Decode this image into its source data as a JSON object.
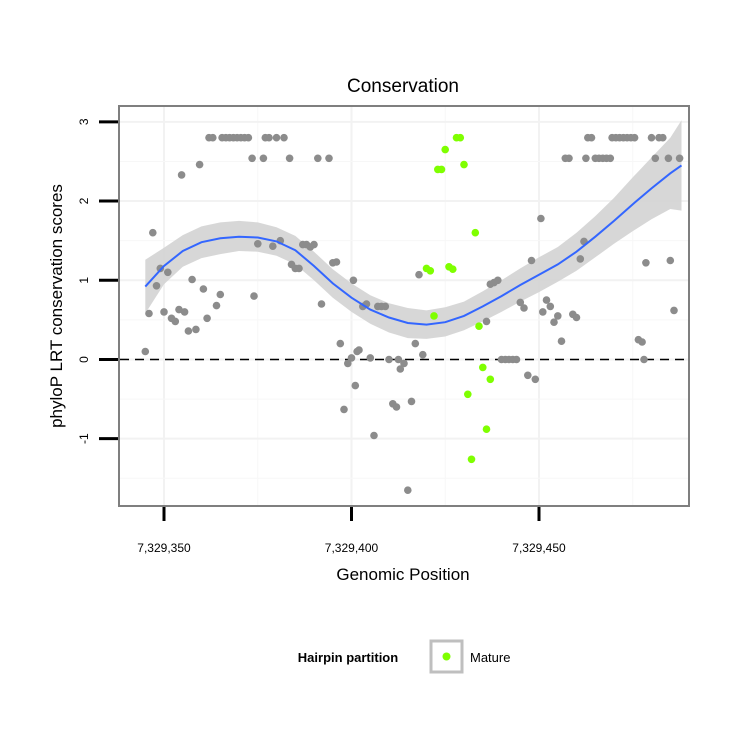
{
  "chart_data": {
    "type": "scatter",
    "title": "Conservation",
    "xlabel": "Genomic Position",
    "ylabel": "phyloP LRT conservation scores",
    "xlim": [
      7329338,
      7329490
    ],
    "ylim": [
      -1.85,
      3.2
    ],
    "x_ticks": [
      7329350,
      7329400,
      7329450
    ],
    "x_tick_labels": [
      "7,329,350",
      "7,329,400",
      "7,329,450"
    ],
    "y_ticks": [
      -1,
      0,
      1,
      2,
      3
    ],
    "y_tick_labels": [
      "-1",
      "0",
      "1",
      "2",
      "3"
    ],
    "grid": true,
    "reference_line": {
      "y": 0,
      "style": "dashed"
    },
    "legend": {
      "title": "Hairpin partition",
      "placement": "bottom",
      "entries": [
        {
          "label": "Mature",
          "color": "#7fff00"
        }
      ]
    },
    "colors": {
      "other": "#8c8c8c",
      "mature": "#7fff00",
      "smooth": "#3366ff",
      "band": "#d3d3d3"
    },
    "series": [
      {
        "role": "other",
        "points": [
          [
            7329345,
            0.1
          ],
          [
            7329346,
            0.58
          ],
          [
            7329347,
            1.6
          ],
          [
            7329348,
            0.93
          ],
          [
            7329349,
            1.15
          ],
          [
            7329350,
            0.6
          ],
          [
            7329351,
            1.1
          ],
          [
            7329352,
            0.52
          ],
          [
            7329353,
            0.48
          ],
          [
            7329354,
            0.63
          ],
          [
            7329354.7,
            2.33
          ],
          [
            7329355.5,
            0.6
          ],
          [
            7329356.5,
            0.36
          ],
          [
            7329357.5,
            1.01
          ],
          [
            7329358.5,
            0.38
          ],
          [
            7329359.5,
            2.46
          ],
          [
            7329360.5,
            0.89
          ],
          [
            7329361.5,
            0.52
          ],
          [
            7329362,
            2.8
          ],
          [
            7329363,
            2.8
          ],
          [
            7329364,
            0.68
          ],
          [
            7329365,
            0.82
          ],
          [
            7329365.5,
            2.8
          ],
          [
            7329366.5,
            2.8
          ],
          [
            7329367.5,
            2.8
          ],
          [
            7329368.5,
            2.8
          ],
          [
            7329369.5,
            2.8
          ],
          [
            7329370.5,
            2.8
          ],
          [
            7329371.5,
            2.8
          ],
          [
            7329372.5,
            2.8
          ],
          [
            7329373.5,
            2.54
          ],
          [
            7329374,
            0.8
          ],
          [
            7329375,
            1.46
          ],
          [
            7329376.5,
            2.54
          ],
          [
            7329377,
            2.8
          ],
          [
            7329378,
            2.8
          ],
          [
            7329379,
            1.43
          ],
          [
            7329380,
            2.8
          ],
          [
            7329381,
            1.5
          ],
          [
            7329382,
            2.8
          ],
          [
            7329383.5,
            2.54
          ],
          [
            7329384,
            1.2
          ],
          [
            7329385,
            1.15
          ],
          [
            7329386,
            1.15
          ],
          [
            7329387,
            1.45
          ],
          [
            7329388,
            1.45
          ],
          [
            7329389,
            1.42
          ],
          [
            7329390,
            1.45
          ],
          [
            7329391,
            2.54
          ],
          [
            7329392,
            0.7
          ],
          [
            7329394,
            2.54
          ],
          [
            7329395,
            1.22
          ],
          [
            7329396,
            1.23
          ],
          [
            7329397,
            0.2
          ],
          [
            7329398,
            -0.63
          ],
          [
            7329399,
            -0.05
          ],
          [
            7329400,
            0.02
          ],
          [
            7329400.5,
            1.0
          ],
          [
            7329401,
            -0.33
          ],
          [
            7329401.5,
            0.1
          ],
          [
            7329402,
            0.12
          ],
          [
            7329403,
            0.67
          ],
          [
            7329404,
            0.7
          ],
          [
            7329405,
            0.02
          ],
          [
            7329406,
            -0.96
          ],
          [
            7329407,
            0.67
          ],
          [
            7329408,
            0.67
          ],
          [
            7329409,
            0.67
          ],
          [
            7329410,
            0.0
          ],
          [
            7329411,
            -0.56
          ],
          [
            7329412,
            -0.6
          ],
          [
            7329412.5,
            0.0
          ],
          [
            7329413,
            -0.12
          ],
          [
            7329414,
            -0.05
          ],
          [
            7329415,
            -1.65
          ],
          [
            7329416,
            -0.53
          ],
          [
            7329417,
            0.2
          ],
          [
            7329418,
            1.07
          ],
          [
            7329419,
            0.06
          ],
          [
            7329436,
            0.48
          ],
          [
            7329437,
            0.95
          ],
          [
            7329438,
            0.97
          ],
          [
            7329439,
            1.0
          ],
          [
            7329440,
            0.0
          ],
          [
            7329441,
            0.0
          ],
          [
            7329442,
            0.0
          ],
          [
            7329443,
            0.0
          ],
          [
            7329444,
            0.0
          ],
          [
            7329445,
            0.72
          ],
          [
            7329446,
            0.65
          ],
          [
            7329447,
            -0.2
          ],
          [
            7329448,
            1.25
          ],
          [
            7329449,
            -0.25
          ],
          [
            7329450.5,
            1.78
          ],
          [
            7329451,
            0.6
          ],
          [
            7329452,
            0.75
          ],
          [
            7329453,
            0.67
          ],
          [
            7329454,
            0.47
          ],
          [
            7329455,
            0.55
          ],
          [
            7329456,
            0.23
          ],
          [
            7329457,
            2.54
          ],
          [
            7329458,
            2.54
          ],
          [
            7329459,
            0.57
          ],
          [
            7329460,
            0.53
          ],
          [
            7329461,
            1.27
          ],
          [
            7329462,
            1.49
          ],
          [
            7329462.5,
            2.54
          ],
          [
            7329463,
            2.8
          ],
          [
            7329464,
            2.8
          ],
          [
            7329465,
            2.54
          ],
          [
            7329466,
            2.54
          ],
          [
            7329467,
            2.54
          ],
          [
            7329468,
            2.54
          ],
          [
            7329469,
            2.54
          ],
          [
            7329469.5,
            2.8
          ],
          [
            7329470.5,
            2.8
          ],
          [
            7329471.5,
            2.8
          ],
          [
            7329472.5,
            2.8
          ],
          [
            7329473.5,
            2.8
          ],
          [
            7329474.5,
            2.8
          ],
          [
            7329475.5,
            2.8
          ],
          [
            7329476.5,
            0.25
          ],
          [
            7329477.5,
            0.22
          ],
          [
            7329478,
            0.0
          ],
          [
            7329478.5,
            1.22
          ],
          [
            7329480,
            2.8
          ],
          [
            7329481,
            2.54
          ],
          [
            7329482,
            2.8
          ],
          [
            7329483,
            2.8
          ],
          [
            7329484.5,
            2.54
          ],
          [
            7329485,
            1.25
          ],
          [
            7329486,
            0.62
          ],
          [
            7329487.5,
            2.54
          ]
        ]
      },
      {
        "name": "Mature",
        "role": "mature",
        "points": [
          [
            7329420,
            1.15
          ],
          [
            7329421,
            1.12
          ],
          [
            7329422,
            0.55
          ],
          [
            7329423,
            2.4
          ],
          [
            7329424,
            2.4
          ],
          [
            7329425,
            2.65
          ],
          [
            7329426,
            1.17
          ],
          [
            7329427,
            1.14
          ],
          [
            7329428,
            2.8
          ],
          [
            7329429,
            2.8
          ],
          [
            7329430,
            2.46
          ],
          [
            7329431,
            -0.44
          ],
          [
            7329432,
            -1.26
          ],
          [
            7329433,
            1.6
          ],
          [
            7329434,
            0.42
          ],
          [
            7329435,
            -0.1
          ],
          [
            7329436,
            -0.88
          ],
          [
            7329437,
            -0.25
          ]
        ]
      }
    ],
    "smooth_fit": {
      "method": "loess",
      "x": [
        7329345,
        7329350,
        7329355,
        7329360,
        7329365,
        7329370,
        7329375,
        7329380,
        7329385,
        7329390,
        7329395,
        7329400,
        7329405,
        7329410,
        7329415,
        7329420,
        7329425,
        7329430,
        7329435,
        7329440,
        7329445,
        7329450,
        7329455,
        7329460,
        7329465,
        7329470,
        7329475,
        7329480,
        7329485,
        7329488
      ],
      "y": [
        0.92,
        1.18,
        1.37,
        1.48,
        1.53,
        1.55,
        1.54,
        1.49,
        1.38,
        1.18,
        0.96,
        0.78,
        0.63,
        0.53,
        0.46,
        0.44,
        0.47,
        0.55,
        0.67,
        0.8,
        0.94,
        1.07,
        1.2,
        1.36,
        1.55,
        1.75,
        1.96,
        2.16,
        2.35,
        2.45
      ],
      "ymin": [
        0.58,
        0.95,
        1.17,
        1.28,
        1.33,
        1.37,
        1.36,
        1.31,
        1.2,
        1.0,
        0.78,
        0.6,
        0.45,
        0.34,
        0.27,
        0.26,
        0.29,
        0.37,
        0.48,
        0.6,
        0.73,
        0.85,
        0.98,
        1.12,
        1.29,
        1.46,
        1.62,
        1.77,
        1.9,
        1.88
      ],
      "ymax": [
        1.26,
        1.41,
        1.57,
        1.68,
        1.73,
        1.75,
        1.73,
        1.67,
        1.56,
        1.36,
        1.14,
        0.96,
        0.81,
        0.71,
        0.65,
        0.62,
        0.66,
        0.73,
        0.86,
        1.0,
        1.15,
        1.29,
        1.42,
        1.6,
        1.81,
        2.04,
        2.3,
        2.55,
        2.8,
        3.02
      ]
    }
  }
}
